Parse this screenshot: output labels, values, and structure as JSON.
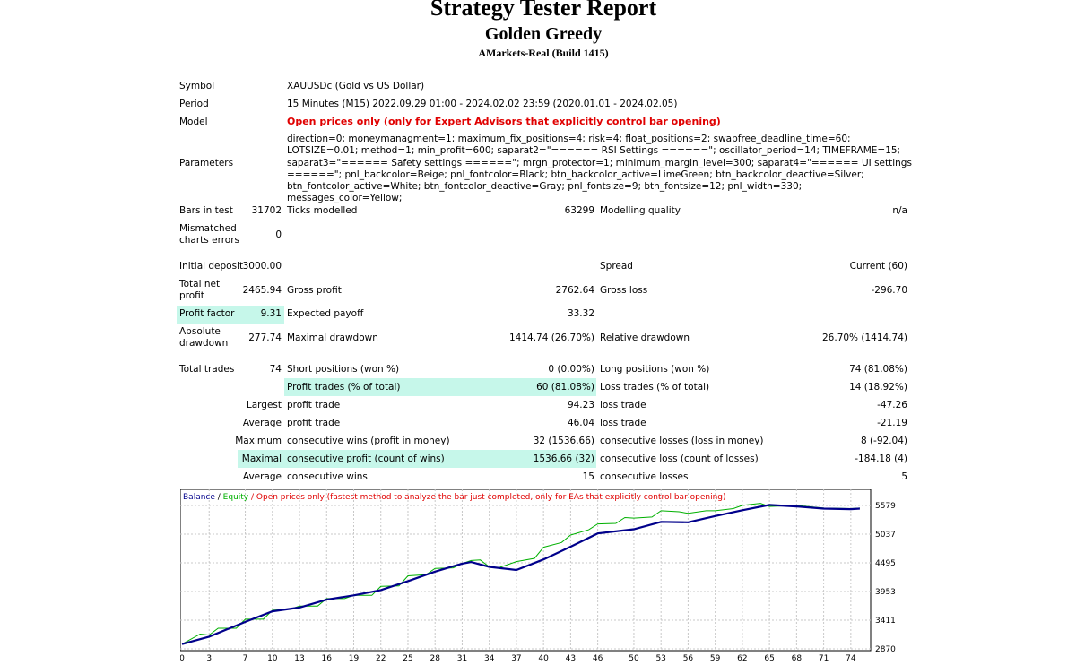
{
  "report": {
    "title": "Strategy Tester Report",
    "expert": "Golden Greedy",
    "server": "AMarkets-Real (Build 1415)"
  },
  "info": {
    "symbol_label": "Symbol",
    "symbol_value": "XAUUSDc (Gold vs US Dollar)",
    "period_label": "Period",
    "period_value": "15 Minutes (M15) 2022.09.29 01:00 - 2024.02.02 23:59 (2020.01.01 - 2024.02.05)",
    "model_label": "Model",
    "model_value": "Open prices only (only for Expert Advisors that explicitly control bar opening)",
    "parameters_label": "Parameters",
    "parameters_value": "direction=0; moneymanagment=1; maximum_fix_positions=4; risk=4; float_positions=2; swapfree_deadline_time=60; LOTSIZE=0.01; method=1; min_profit=600; saparat2=\"====== RSI Settings ======\"; oscillator_period=14; TIMEFRAME=15; saparat3=\"====== Safety settings ======\"; mrgn_protector=1; minimum_margin_level=300; saparat4=\"====== UI settings ======\"; pnl_backcolor=Beige; pnl_fontcolor=Black; btn_backcolor_active=LimeGreen; btn_backcolor_deactive=Silver; btn_fontcolor_active=White; btn_fontcolor_deactive=Gray; pnl_fontsize=9; btn_fontsize=12; pnl_width=330; messages_color=Yellow;"
  },
  "stats": {
    "bars_label": "Bars in test",
    "bars_value": "31702",
    "ticks_label": "Ticks modelled",
    "ticks_value": "63299",
    "quality_label": "Modelling quality",
    "quality_value": "n/a",
    "mismatch_label_1": "Mismatched",
    "mismatch_label_2": "charts errors",
    "mismatch_value": "0",
    "deposit_label": "Initial deposit",
    "deposit_value": "3000.00",
    "spread_label": "Spread",
    "spread_value": "Current (60)",
    "netprofit_label_1": "Total net",
    "netprofit_label_2": "profit",
    "netprofit_value": "2465.94",
    "grossprofit_label": "Gross profit",
    "grossprofit_value": "2762.64",
    "grossloss_label": "Gross loss",
    "grossloss_value": "-296.70",
    "pf_label": "Profit factor",
    "pf_value": "9.31",
    "payoff_label": "Expected payoff",
    "payoff_value": "33.32",
    "absdd_label_1": "Absolute",
    "absdd_label_2": "drawdown",
    "absdd_value": "277.74",
    "maxdd_label": "Maximal drawdown",
    "maxdd_value": "1414.74 (26.70%)",
    "reldd_label": "Relative drawdown",
    "reldd_value": "26.70% (1414.74)",
    "trades_label": "Total trades",
    "trades_value": "74",
    "short_label": "Short positions (won %)",
    "short_value": "0 (0.00%)",
    "long_label": "Long positions (won %)",
    "long_value": "74 (81.08%)",
    "profittrades_label": "Profit trades (% of total)",
    "profittrades_value": "60 (81.08%)",
    "losstrades_label": "Loss trades (% of total)",
    "losstrades_value": "14 (18.92%)",
    "largest_label": "Largest",
    "largest_profit_label": "profit trade",
    "largest_profit_value": "94.23",
    "largest_loss_label": "loss trade",
    "largest_loss_value": "-47.26",
    "average_label": "Average",
    "average_profit_label": "profit trade",
    "average_profit_value": "46.04",
    "average_loss_label": "loss trade",
    "average_loss_value": "-21.19",
    "maximum_label": "Maximum",
    "max_wins_label": "consecutive wins (profit in money)",
    "max_wins_value": "32 (1536.66)",
    "max_losses_label": "consecutive losses (loss in money)",
    "max_losses_value": "8 (-92.04)",
    "maximal_label": "Maximal",
    "maximal_profit_label": "consecutive profit (count of wins)",
    "maximal_profit_value": "1536.66 (32)",
    "maximal_loss_label": "consecutive loss (count of losses)",
    "maximal_loss_value": "-184.18 (4)",
    "avg2_label": "Average",
    "avg_wins_label": "consecutive wins",
    "avg_wins_value": "15",
    "avg_losses_label": "consecutive losses",
    "avg_losses_value": "5"
  },
  "chart_legend": {
    "balance": "Balance",
    "sep": " / ",
    "equity": "Equity",
    "note": " / Open prices only (fastest method to analyze the bar just completed, only for EAs that explicitly control bar opening)"
  },
  "colors": {
    "balance": "#00008b",
    "equity": "#00b000",
    "note": "#e00000",
    "highlight": "#c6f7ea"
  },
  "chart_data": {
    "type": "line",
    "ylim": [
      2870,
      5850
    ],
    "xlim": [
      0,
      76
    ],
    "y_ticks": [
      5579,
      5037,
      4495,
      3953,
      3411,
      2870
    ],
    "x_ticks": [
      0,
      3,
      7,
      10,
      13,
      16,
      19,
      22,
      25,
      28,
      31,
      34,
      37,
      40,
      43,
      46,
      50,
      53,
      56,
      59,
      62,
      65,
      68,
      71,
      74
    ],
    "grid": true,
    "legend": "top-left",
    "series": [
      {
        "name": "Balance",
        "x": [
          0,
          3,
          7,
          10,
          13,
          16,
          19,
          22,
          25,
          28,
          31,
          32,
          34,
          37,
          40,
          43,
          46,
          50,
          53,
          56,
          59,
          62,
          65,
          68,
          71,
          74,
          75
        ],
        "y": [
          2960,
          3100,
          3380,
          3580,
          3650,
          3800,
          3880,
          3980,
          4150,
          4330,
          4480,
          4510,
          4420,
          4360,
          4560,
          4800,
          5050,
          5130,
          5270,
          5260,
          5380,
          5490,
          5590,
          5560,
          5520,
          5510,
          5520
        ]
      },
      {
        "name": "Equity",
        "x": [
          0,
          2,
          3,
          4,
          6,
          7,
          9,
          10,
          12,
          13,
          15,
          16,
          18,
          19,
          21,
          22,
          24,
          25,
          27,
          28,
          30,
          31,
          32,
          33,
          34,
          35,
          37,
          39,
          40,
          42,
          43,
          45,
          46,
          48,
          49,
          50,
          52,
          53,
          55,
          56,
          58,
          59,
          61,
          62,
          64,
          65,
          68,
          71,
          74,
          75
        ],
        "y": [
          2960,
          3150,
          3130,
          3260,
          3260,
          3430,
          3430,
          3600,
          3620,
          3680,
          3680,
          3820,
          3820,
          3880,
          3880,
          4050,
          4060,
          4250,
          4270,
          4390,
          4400,
          4480,
          4540,
          4550,
          4420,
          4400,
          4520,
          4580,
          4790,
          4880,
          5020,
          5120,
          5230,
          5240,
          5350,
          5340,
          5360,
          5480,
          5460,
          5430,
          5480,
          5480,
          5520,
          5580,
          5620,
          5560,
          5580,
          5530,
          5520,
          5530
        ]
      }
    ]
  }
}
